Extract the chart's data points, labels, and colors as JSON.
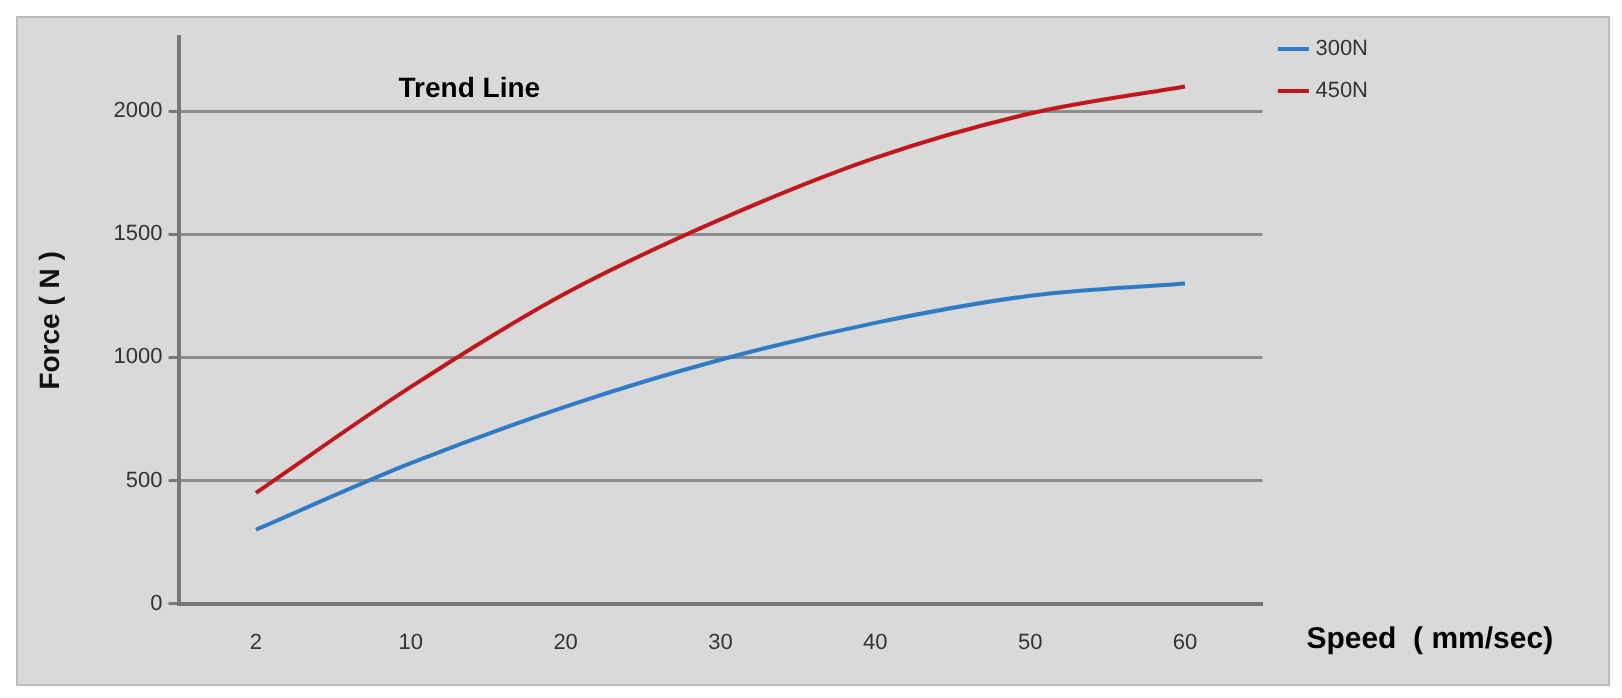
{
  "chart_data": {
    "type": "line",
    "xlabel": "Speed  ( mm/sec)",
    "ylabel": "Force ( N )",
    "annotations": [
      "Trend Line"
    ],
    "categories": [
      "2",
      "10",
      "20",
      "30",
      "40",
      "50",
      "60"
    ],
    "series": [
      {
        "name": "300N",
        "color": "#2e7bc4",
        "values": [
          300,
          570,
          800,
          990,
          1140,
          1250,
          1300
        ]
      },
      {
        "name": "450N",
        "color": "#c0161c",
        "values": [
          450,
          880,
          1260,
          1560,
          1810,
          1990,
          2100
        ]
      }
    ],
    "ylim": [
      0,
      2300
    ],
    "yticks": [
      0,
      500,
      1000,
      1500,
      2000
    ],
    "grid": "y",
    "legend": "right",
    "marker": "none",
    "line_style": "solid"
  }
}
